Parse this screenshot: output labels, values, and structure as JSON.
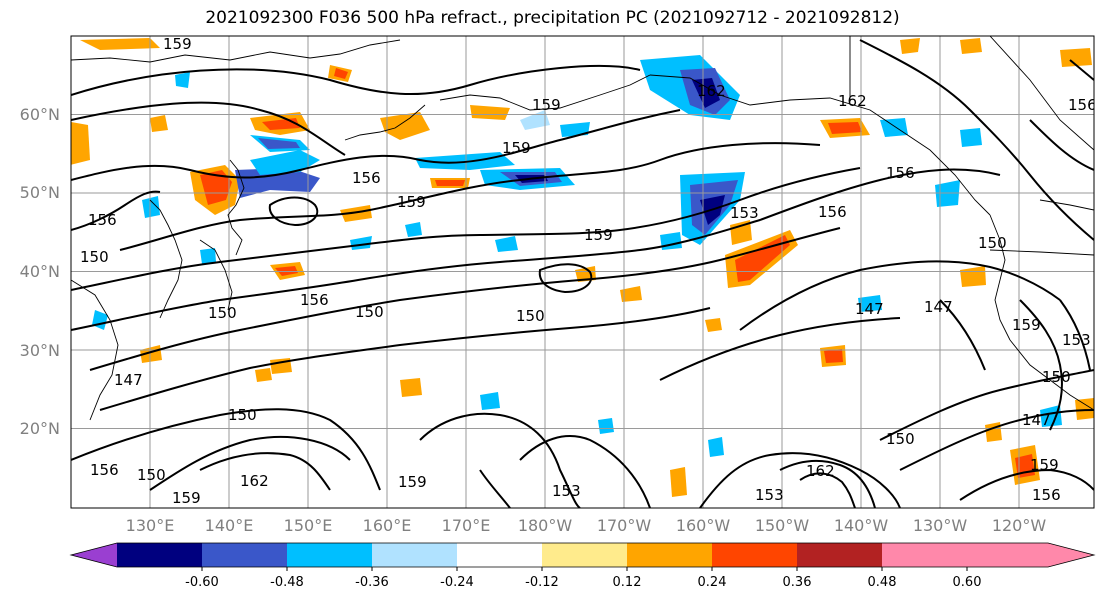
{
  "title": "2021092300 F036 500 hPa refract., precipitation PC (2021092712 - 2021092812)",
  "lat_labels": [
    "60°N",
    "50°N",
    "40°N",
    "30°N",
    "20°N"
  ],
  "lon_labels": [
    "130°E",
    "140°E",
    "150°E",
    "160°E",
    "170°E",
    "180°W",
    "170°W",
    "160°W",
    "150°W",
    "140°W",
    "130°W",
    "120°W"
  ],
  "colorbar": {
    "colors": [
      "#9a3fd1",
      "#00007f",
      "#3a57c9",
      "#00bfff",
      "#b0e2ff",
      "#ffffff",
      "#ffeb8c",
      "#ffa500",
      "#ff4500",
      "#b22222",
      "#ff88aa"
    ],
    "tick_labels": [
      "-0.60",
      "-0.48",
      "-0.36",
      "-0.24",
      "-0.12",
      "0.12",
      "0.24",
      "0.36",
      "0.48",
      "0.60"
    ]
  },
  "contour_labels": [
    "159",
    "162",
    "159",
    "159",
    "156",
    "159",
    "159",
    "153",
    "156",
    "156",
    "150",
    "156",
    "150",
    "150",
    "150",
    "147",
    "147",
    "150",
    "162",
    "159",
    "159",
    "153",
    "153",
    "162",
    "150",
    "150",
    "156",
    "147",
    "150",
    "156",
    "159",
    "150",
    "156",
    "162",
    "159",
    "147",
    "156",
    "153"
  ]
}
